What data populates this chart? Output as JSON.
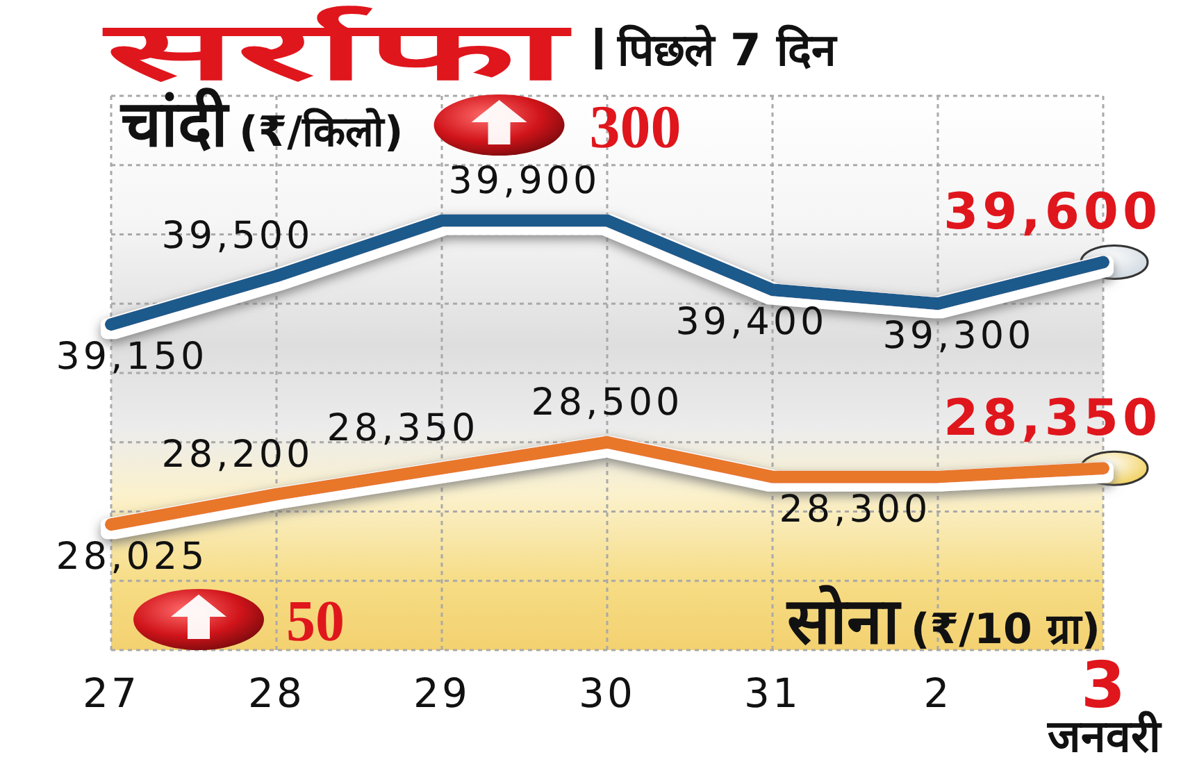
{
  "chart_data": {
    "type": "line",
    "title": "सर्राफा",
    "subtitle": "पिछले 7 दिन",
    "xlabel": "जनवरी",
    "categories": [
      "27",
      "28",
      "29",
      "30",
      "31",
      "2",
      "3"
    ],
    "series": [
      {
        "name": "चांदी (₹/किलो)",
        "color": "#1d5a8c",
        "values": [
          39150,
          39500,
          39900,
          39900,
          39400,
          39300,
          39600
        ],
        "value_labels": [
          "39,150",
          "39,500",
          "39,900",
          null,
          "39,400",
          "39,300",
          "39,600"
        ]
      },
      {
        "name": "सोना (₹/10 ग्रा)",
        "color": "#e8772b",
        "axis": "y2",
        "values": [
          28025,
          28200,
          28350,
          28500,
          28300,
          28300,
          28350
        ],
        "value_labels": [
          "28,025",
          "28,200",
          "28,350",
          "28,500",
          "28,300",
          null,
          "28,350"
        ]
      }
    ],
    "annotations": [
      "300",
      "50"
    ],
    "ylim": [
      36800,
      40800
    ],
    "yticks": [
      {
        "value": 36800,
        "label": null
      },
      {
        "value": 37300,
        "label": null
      },
      {
        "value": 37800,
        "label": null
      },
      {
        "value": 38300,
        "label": null
      },
      {
        "value": 38800,
        "label": null
      },
      {
        "value": 39300,
        "label": null
      },
      {
        "value": 39800,
        "label": null
      },
      {
        "value": 40300,
        "label": null
      },
      {
        "value": 40800,
        "label": null
      }
    ],
    "y2lim": [
      27300,
      30500
    ],
    "grid": true,
    "tick_labels": "x"
  }
}
